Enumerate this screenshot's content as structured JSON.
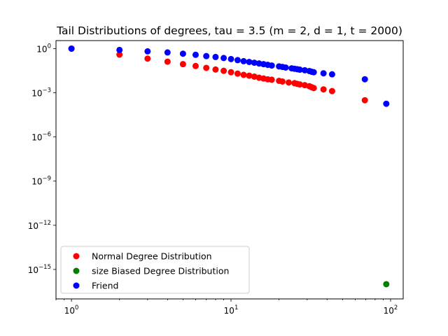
{
  "chart_data": {
    "type": "scatter",
    "title": "Tail Distributions of degrees, tau = 3.5 (m = 2, d = 1, t = 2000)",
    "xlabel": "",
    "ylabel": "",
    "xscale": "log",
    "yscale": "log",
    "xlim": [
      0.8,
      120
    ],
    "ylim": [
      1e-17,
      3.5
    ],
    "x_ticks": [
      {
        "value": 1,
        "base": "10",
        "exp": "0"
      },
      {
        "value": 10,
        "base": "10",
        "exp": "1"
      },
      {
        "value": 100,
        "base": "10",
        "exp": "2"
      }
    ],
    "y_ticks": [
      {
        "value": 1,
        "base": "10",
        "exp": "0"
      },
      {
        "value": 0.001,
        "base": "10",
        "exp": "−3"
      },
      {
        "value": 1e-06,
        "base": "10",
        "exp": "−6"
      },
      {
        "value": 1e-09,
        "base": "10",
        "exp": "−9"
      },
      {
        "value": 1e-12,
        "base": "10",
        "exp": "−12"
      },
      {
        "value": 1e-15,
        "base": "10",
        "exp": "−15"
      }
    ],
    "grid": false,
    "legend_position": "lower-left",
    "series": [
      {
        "name": "Normal Degree Distribution",
        "color": "#ff0000",
        "points": [
          [
            1,
            1.0
          ],
          [
            2,
            0.39
          ],
          [
            3,
            0.21
          ],
          [
            4,
            0.13
          ],
          [
            5,
            0.088
          ],
          [
            6,
            0.066
          ],
          [
            7,
            0.049
          ],
          [
            8,
            0.038
          ],
          [
            9,
            0.031
          ],
          [
            10,
            0.025
          ],
          [
            11,
            0.02
          ],
          [
            12,
            0.0165
          ],
          [
            13,
            0.0145
          ],
          [
            14,
            0.0125
          ],
          [
            15,
            0.0105
          ],
          [
            16,
            0.0093
          ],
          [
            17,
            0.0082
          ],
          [
            18,
            0.0077
          ],
          [
            20,
            0.0065
          ],
          [
            21,
            0.0058
          ],
          [
            23,
            0.005
          ],
          [
            25,
            0.0045
          ],
          [
            26,
            0.004
          ],
          [
            27,
            0.0037
          ],
          [
            29,
            0.0033
          ],
          [
            31,
            0.0028
          ],
          [
            32,
            0.0024
          ],
          [
            33,
            0.0021
          ],
          [
            38,
            0.0017
          ],
          [
            43,
            0.0013
          ],
          [
            69,
            0.00031
          ]
        ]
      },
      {
        "name": "size Biased Degree Distribution",
        "color": "#008000",
        "points": [
          [
            94,
            1e-16
          ]
        ]
      },
      {
        "name": "Friend",
        "color": "#0000ff",
        "points": [
          [
            1,
            1.0
          ],
          [
            2,
            0.81
          ],
          [
            3,
            0.65
          ],
          [
            4,
            0.55
          ],
          [
            5,
            0.45
          ],
          [
            6,
            0.38
          ],
          [
            7,
            0.31
          ],
          [
            8,
            0.27
          ],
          [
            9,
            0.23
          ],
          [
            10,
            0.195
          ],
          [
            11,
            0.165
          ],
          [
            12,
            0.14
          ],
          [
            13,
            0.125
          ],
          [
            14,
            0.11
          ],
          [
            15,
            0.098
          ],
          [
            16,
            0.088
          ],
          [
            17,
            0.079
          ],
          [
            18,
            0.071
          ],
          [
            20,
            0.062
          ],
          [
            21,
            0.057
          ],
          [
            22,
            0.052
          ],
          [
            24,
            0.046
          ],
          [
            25,
            0.043
          ],
          [
            26,
            0.04
          ],
          [
            27,
            0.037
          ],
          [
            29,
            0.034
          ],
          [
            31,
            0.03
          ],
          [
            32,
            0.027
          ],
          [
            33,
            0.025
          ],
          [
            38,
            0.021
          ],
          [
            43,
            0.018
          ],
          [
            69,
            0.0083
          ],
          [
            94,
            0.00018
          ]
        ]
      }
    ]
  }
}
